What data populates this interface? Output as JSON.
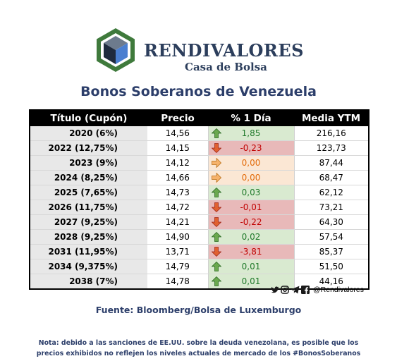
{
  "brand": {
    "name": "RENDIVALORES",
    "subtitle": "Casa de Bolsa"
  },
  "title": "Bonos Soberanos de Venezuela",
  "table": {
    "headers": [
      "Título (Cupón)",
      "Precio",
      "% 1 Día",
      "Media YTM"
    ],
    "rows": [
      {
        "title": "2020 (6%)",
        "price": "14,56",
        "change": "1,85",
        "ytm": "216,16",
        "trend": "up"
      },
      {
        "title": "2022 (12,75%)",
        "price": "14,15",
        "change": "-0,23",
        "ytm": "123,73",
        "trend": "down"
      },
      {
        "title": "2023 (9%)",
        "price": "14,12",
        "change": "0,00",
        "ytm": "87,44",
        "trend": "flat"
      },
      {
        "title": "2024 (8,25%)",
        "price": "14,66",
        "change": "0,00",
        "ytm": "68,47",
        "trend": "flat"
      },
      {
        "title": "2025 (7,65%)",
        "price": "14,73",
        "change": "0,03",
        "ytm": "62,12",
        "trend": "up"
      },
      {
        "title": "2026 (11,75%)",
        "price": "14,72",
        "change": "-0,01",
        "ytm": "73,21",
        "trend": "down"
      },
      {
        "title": "2027 (9,25%)",
        "price": "14,21",
        "change": "-0,22",
        "ytm": "64,30",
        "trend": "down"
      },
      {
        "title": "2028 (9,25%)",
        "price": "14,90",
        "change": "0,02",
        "ytm": "57,54",
        "trend": "up"
      },
      {
        "title": "2031 (11,95%)",
        "price": "13,71",
        "change": "-3,81",
        "ytm": "85,37",
        "trend": "down"
      },
      {
        "title": "2034 (9,375%)",
        "price": "14,79",
        "change": "0,01",
        "ytm": "51,50",
        "trend": "up"
      },
      {
        "title": "2038 (7%)",
        "price": "14,78",
        "change": "0,01",
        "ytm": "44,16",
        "trend": "up"
      }
    ]
  },
  "social": {
    "icons": [
      "twitter-icon",
      "instagram-icon",
      "telegram-icon",
      "facebook-icon"
    ],
    "handle": "@Rendivalores"
  },
  "source": "Fuente: Bloomberg/Bolsa de Luxemburgo",
  "note": "Nota: debido a las sanciones de EE.UU. sobre la deuda venezolana, es posible que los precios exhibidos no reflejen los niveles actuales de mercado de los #BonosSoberanos",
  "colors": {
    "navy": "#2c3e6a",
    "logo_green": "#3f7a3c",
    "up_bg": "#d9ead0",
    "up_text": "#217a2b",
    "down_bg": "#e8b9b9",
    "down_text": "#c00000",
    "flat_bg": "#fbe7d4",
    "flat_text": "#e26b0a"
  }
}
